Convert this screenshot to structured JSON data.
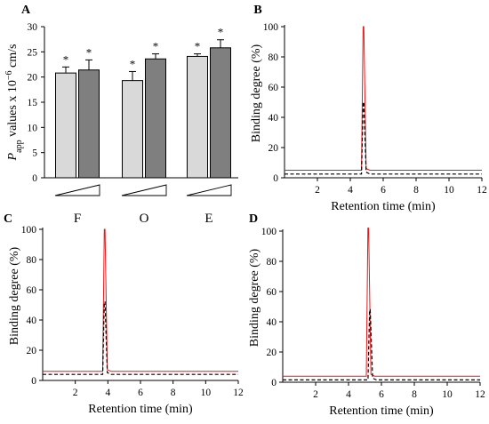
{
  "chart_data": [
    {
      "panel": "A",
      "type": "bar",
      "title": "",
      "xlabel": "",
      "ylabel_prefix": "P",
      "ylabel_sub": "app",
      "ylabel_rest": " values x 10",
      "ylabel_sup": "−6",
      "ylabel_unit": " cm/s",
      "ylim": [
        0,
        30
      ],
      "yticks": [
        0,
        5,
        10,
        15,
        20,
        25,
        30
      ],
      "groups": [
        "F",
        "O",
        "E"
      ],
      "series": [
        {
          "color": "#d9d9d9",
          "values": [
            20.8,
            19.3,
            24.1
          ],
          "errors": [
            1.2,
            1.8,
            0.5
          ]
        },
        {
          "color": "#7f7f7f",
          "values": [
            21.4,
            23.6,
            25.8
          ],
          "errors": [
            2.0,
            1.0,
            1.6
          ]
        }
      ],
      "significance_marker": "*",
      "grid": false
    },
    {
      "panel": "B",
      "type": "line",
      "xlabel": "Retention time (min)",
      "ylabel": "Binding degree (%)",
      "xlim": [
        0,
        12
      ],
      "ylim": [
        0,
        100
      ],
      "xticks": [
        2,
        4,
        6,
        8,
        10,
        12
      ],
      "yticks": [
        0,
        20,
        40,
        60,
        80,
        100
      ],
      "series": [
        {
          "style": "solid",
          "color": "#e41a1c",
          "baseline": 5,
          "peak_x": 4.8,
          "peak_y": 100
        },
        {
          "style": "dashed",
          "color": "#000000",
          "baseline": 2.5,
          "peak_x": 4.8,
          "peak_y": 50
        }
      ],
      "grid": false
    },
    {
      "panel": "C",
      "type": "line",
      "xlabel": "Retention time (min)",
      "ylabel": "Binding degree (%)",
      "xlim": [
        0,
        12
      ],
      "ylim": [
        0,
        100
      ],
      "xticks": [
        2,
        4,
        6,
        8,
        10,
        12
      ],
      "yticks": [
        0,
        20,
        40,
        60,
        80,
        100
      ],
      "series": [
        {
          "style": "solid",
          "color": "#e41a1c",
          "baseline": 6,
          "peak_x": 3.8,
          "peak_y": 100
        },
        {
          "style": "dashed",
          "color": "#000000",
          "baseline": 4,
          "peak_x": 3.8,
          "peak_y": 52
        }
      ],
      "grid": false
    },
    {
      "panel": "D",
      "type": "line",
      "xlabel": "Retention time (min)",
      "ylabel": "Binding degree (%)",
      "xlim": [
        0,
        12
      ],
      "ylim": [
        0,
        100
      ],
      "xticks": [
        2,
        4,
        6,
        8,
        10,
        12
      ],
      "yticks": [
        0,
        20,
        40,
        60,
        80,
        100
      ],
      "series": [
        {
          "style": "solid",
          "color": "#e41a1c",
          "baseline": 4,
          "peak_x": 5.2,
          "peak_y": 102
        },
        {
          "style": "dashed",
          "color": "#000000",
          "baseline": 1.5,
          "peak_x": 5.3,
          "peak_y": 48
        }
      ],
      "grid": false
    }
  ]
}
